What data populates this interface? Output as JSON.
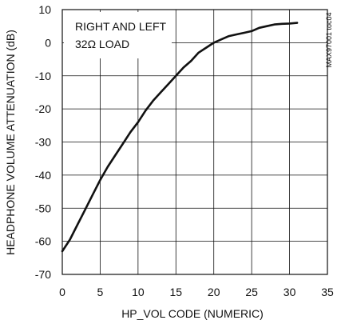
{
  "chart_data": {
    "type": "line",
    "xlabel": "HP_VOL CODE (NUMERIC)",
    "ylabel": "HEADPHONE VOLUME ATTENUATION (dB)",
    "xlim": [
      0,
      35
    ],
    "ylim": [
      -70,
      10
    ],
    "xticks": [
      0,
      5,
      10,
      15,
      20,
      25,
      30,
      35
    ],
    "yticks": [
      -70,
      -60,
      -50,
      -40,
      -30,
      -20,
      -10,
      0,
      10
    ],
    "grid": true,
    "annotation": [
      "RIGHT AND LEFT",
      "32Ω LOAD"
    ],
    "side_label": "MAX97001 toc04",
    "series": [
      {
        "color": "#111111",
        "x": [
          0,
          1,
          2,
          3,
          4,
          5,
          6,
          7,
          8,
          9,
          10,
          11,
          12,
          13,
          14,
          15,
          16,
          17,
          18,
          19,
          20,
          21,
          22,
          23,
          24,
          25,
          26,
          27,
          28,
          29,
          30,
          31
        ],
        "y": [
          -63,
          -59.5,
          -55,
          -50.5,
          -46,
          -41.5,
          -37.5,
          -34,
          -30.5,
          -27,
          -24,
          -20.5,
          -17.5,
          -15,
          -12.5,
          -10,
          -7.5,
          -5.5,
          -3,
          -1.5,
          0,
          1,
          2,
          2.5,
          3,
          3.5,
          4.5,
          5,
          5.5,
          5.7,
          5.8,
          6
        ]
      }
    ]
  }
}
